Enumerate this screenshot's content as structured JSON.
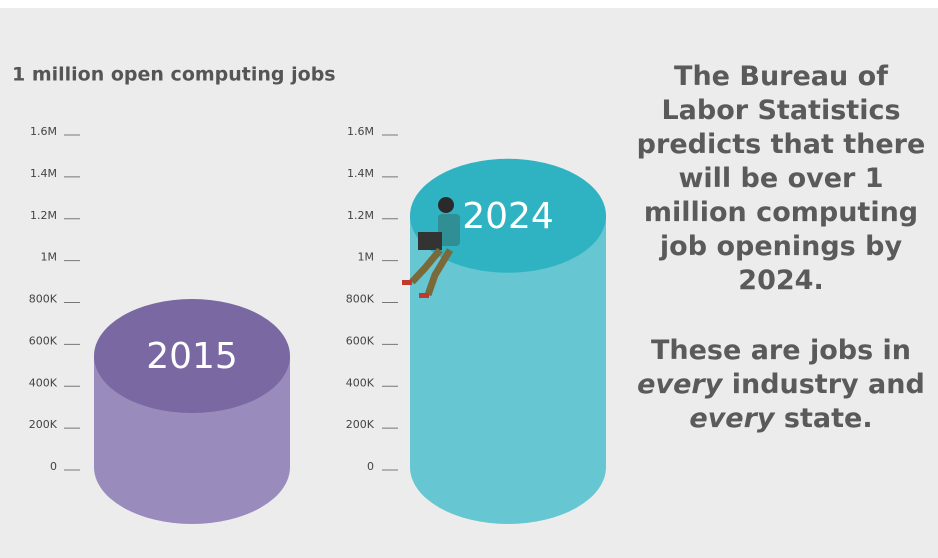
{
  "chart_data": {
    "type": "cylinder",
    "title": "1 million open computing jobs",
    "categories": [
      "2015",
      "2024"
    ],
    "values": [
      530000,
      1200000
    ],
    "colors": [
      "#9a8bbd",
      "#66c6d2"
    ],
    "top_colors": [
      "#7a68a3",
      "#2fb3c3"
    ],
    "ylim": [
      0,
      1600000
    ],
    "yticks": [
      0,
      {
        "value": 200000,
        "label": "200K"
      },
      {
        "value": 400000,
        "label": "400K"
      },
      {
        "value": 600000,
        "label": "600K"
      },
      {
        "value": 800000,
        "label": "800K"
      },
      {
        "value": 1000000,
        "label": "1M"
      },
      {
        "value": 1200000,
        "label": "1.2M"
      },
      {
        "value": 1400000,
        "label": "1.4M"
      },
      {
        "value": 1600000,
        "label": "1.6M"
      }
    ],
    "annotations": [
      "The Bureau of Labor Statistics predicts that there will be over 1 million computing job openings by 2024.",
      [
        "These are jobs in ",
        "every",
        " industry and ",
        "every",
        " state."
      ]
    ]
  }
}
